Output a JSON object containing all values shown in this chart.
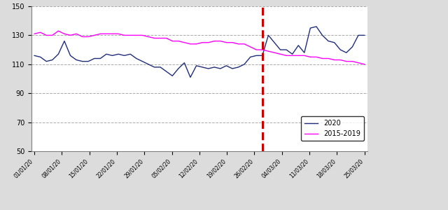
{
  "ylim": [
    50,
    150
  ],
  "yticks": [
    50,
    70,
    90,
    110,
    130,
    150
  ],
  "x_labels": [
    "01/01/20",
    "08/01/20",
    "15/01/20",
    "22/01/20",
    "29/01/20",
    "05/02/20",
    "12/02/20",
    "19/02/20",
    "26/02/20",
    "04/03/20",
    "11/03/20",
    "18/03/20",
    "25/03/20"
  ],
  "vline_x": 38,
  "line2020_color": "#1F2D7B",
  "line2015_color": "#FF00FF",
  "vline_color": "#CC0000",
  "legend_2020": "2020",
  "legend_2015": "2015-2019",
  "series_2020": [
    116,
    115,
    112,
    113,
    117,
    126,
    116,
    113,
    112,
    112,
    114,
    114,
    117,
    116,
    117,
    116,
    117,
    114,
    112,
    110,
    108,
    108,
    105,
    102,
    107,
    111,
    101,
    109,
    108,
    107,
    108,
    107,
    109,
    107,
    108,
    110,
    115,
    116,
    116,
    130,
    125,
    120,
    120,
    117,
    123,
    118,
    135,
    136,
    130,
    126,
    125,
    120,
    118,
    122,
    130,
    130
  ],
  "series_2015": [
    131,
    132,
    130,
    130,
    133,
    131,
    130,
    131,
    129,
    129,
    130,
    131,
    131,
    131,
    131,
    130,
    130,
    130,
    130,
    129,
    128,
    128,
    128,
    126,
    126,
    125,
    124,
    124,
    125,
    125,
    126,
    126,
    125,
    125,
    124,
    124,
    122,
    120,
    120,
    119,
    118,
    117,
    116,
    116,
    116,
    116,
    115,
    115,
    114,
    114,
    113,
    113,
    112,
    112,
    111,
    110
  ],
  "grid_color": "#AAAAAA",
  "bg_color": "#FFFFFF",
  "fig_bg": "#DCDCDC",
  "border_color": "#808080"
}
